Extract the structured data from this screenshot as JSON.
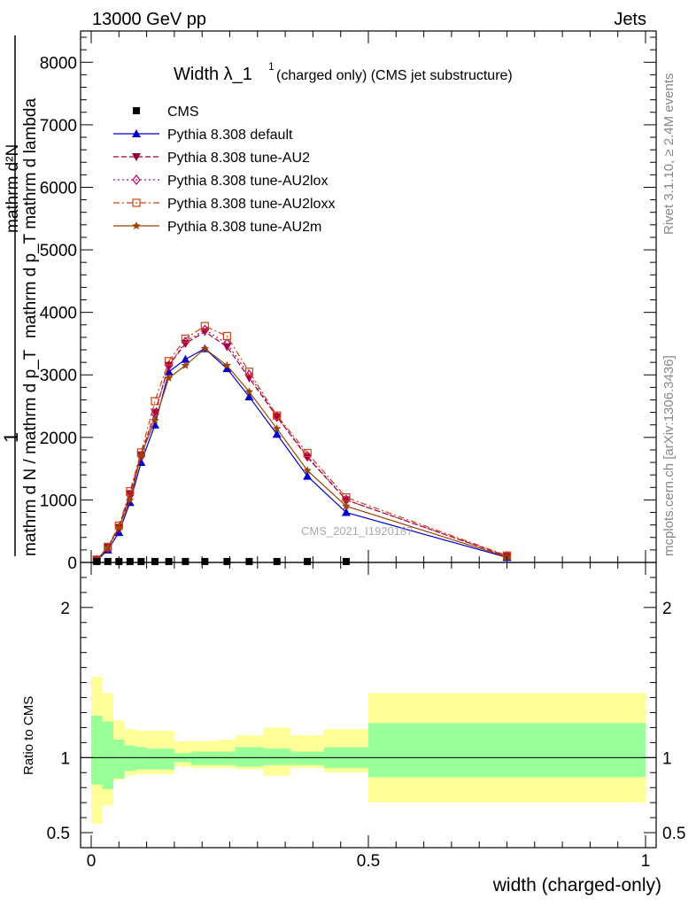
{
  "header": {
    "left": "13000 GeV pp",
    "right": "Jets"
  },
  "side_labels": {
    "rivet": "Rivet 3.1.10, ≥ 2.4M events",
    "mcplots": "mcplots.cern.ch [arXiv:1306.3436]"
  },
  "chart_data": {
    "type": "line",
    "title": {
      "main": "Width λ_1",
      "sup": "1",
      "suffix": "(charged only) (CMS jet substructure)"
    },
    "watermark": "CMS_2021_I1920187",
    "ylabel_main": {
      "numerator_lines": [
        "mathrm d²N",
        "mathrm d p_T mathrm d lambda"
      ],
      "one": "1",
      "denominator": "mathrm d N / mathrm d p_T"
    },
    "ylabel_ratio": "Ratio to CMS",
    "xlabel": "width (charged-only)",
    "xlim": [
      0,
      1
    ],
    "ylim_main": [
      0,
      8500
    ],
    "ylim_ratio": [
      0.4,
      2.3
    ],
    "x_ticks": [
      "0",
      "0.5",
      "1"
    ],
    "y_ticks_main": [
      "0",
      "1000",
      "2000",
      "3000",
      "4000",
      "5000",
      "6000",
      "7000",
      "8000"
    ],
    "y_ticks_ratio": [
      "0.5",
      "1",
      "2"
    ],
    "legend": {
      "position": "top-left"
    },
    "x": [
      0.01,
      0.03,
      0.05,
      0.07,
      0.09,
      0.115,
      0.14,
      0.17,
      0.205,
      0.245,
      0.285,
      0.335,
      0.39,
      0.46,
      0.75
    ],
    "cms": {
      "name": "CMS",
      "values": [
        15,
        15,
        15,
        15,
        15,
        15,
        15,
        15,
        15,
        15,
        15,
        15,
        15,
        15
      ]
    },
    "series": [
      {
        "name": "Pythia 8.308 default",
        "color": "#0000cc",
        "dash": "",
        "marker": "triangle-up",
        "values": [
          30,
          200,
          480,
          960,
          1600,
          2200,
          3050,
          3250,
          3420,
          3100,
          2650,
          2050,
          1380,
          800,
          80
        ]
      },
      {
        "name": "Pythia 8.308 tune-AU2",
        "color": "#990033",
        "dash": "6,3",
        "marker": "triangle-down",
        "values": [
          50,
          240,
          560,
          1100,
          1720,
          2400,
          3150,
          3500,
          3690,
          3450,
          2950,
          2330,
          1680,
          1000,
          100
        ]
      },
      {
        "name": "Pythia 8.308 tune-AU2lox",
        "color": "#bb0066",
        "dash": "2,3",
        "marker": "diamond-open",
        "values": [
          40,
          230,
          550,
          1080,
          1700,
          2380,
          3150,
          3530,
          3720,
          3500,
          3000,
          2330,
          1700,
          1000,
          100
        ]
      },
      {
        "name": "Pythia 8.308 tune-AU2loxx",
        "color": "#cc4411",
        "dash": "7,3,2,3",
        "marker": "square-open",
        "values": [
          45,
          250,
          590,
          1140,
          1760,
          2580,
          3220,
          3580,
          3780,
          3620,
          3050,
          2350,
          1750,
          1040,
          110
        ]
      },
      {
        "name": "Pythia 8.308 tune-AU2m",
        "color": "#994400",
        "dash": "",
        "marker": "star",
        "values": [
          40,
          240,
          560,
          1000,
          1720,
          2270,
          2950,
          3150,
          3420,
          3150,
          2730,
          2140,
          1470,
          900,
          90
        ]
      }
    ],
    "ratio_band_edges": [
      0,
      0.02,
      0.04,
      0.06,
      0.08,
      0.1,
      0.15,
      0.18,
      0.23,
      0.26,
      0.31,
      0.36,
      0.42,
      0.5,
      1.0
    ],
    "ratio_band_inner": [
      [
        0.82,
        1.28
      ],
      [
        0.79,
        1.24
      ],
      [
        0.86,
        1.12
      ],
      [
        0.91,
        1.08
      ],
      [
        0.92,
        1.07
      ],
      [
        0.92,
        1.06
      ],
      [
        0.97,
        1.03
      ],
      [
        0.95,
        1.04
      ],
      [
        0.95,
        1.04
      ],
      [
        0.94,
        1.07
      ],
      [
        0.95,
        1.06
      ],
      [
        0.95,
        1.04
      ],
      [
        0.93,
        1.07
      ],
      [
        0.87,
        1.23
      ]
    ],
    "ratio_band_outer": [
      [
        0.56,
        1.54
      ],
      [
        0.68,
        1.43
      ],
      [
        0.85,
        1.25
      ],
      [
        0.88,
        1.19
      ],
      [
        0.89,
        1.18
      ],
      [
        0.89,
        1.18
      ],
      [
        0.94,
        1.11
      ],
      [
        0.93,
        1.11
      ],
      [
        0.93,
        1.12
      ],
      [
        0.92,
        1.15
      ],
      [
        0.88,
        1.2
      ],
      [
        0.93,
        1.15
      ],
      [
        0.9,
        1.19
      ],
      [
        0.7,
        1.43
      ]
    ]
  }
}
